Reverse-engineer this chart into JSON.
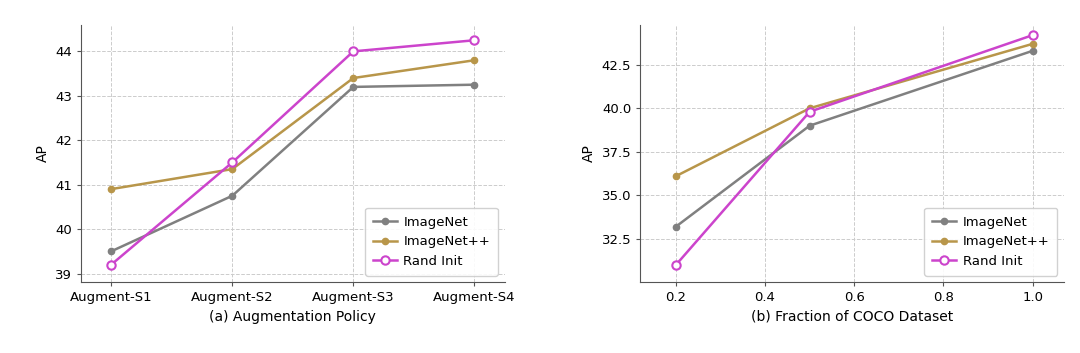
{
  "left": {
    "xlabel": "(a) Augmentation Policy",
    "ylabel": "AP",
    "xtick_labels": [
      "Augment-S1",
      "Augment-S2",
      "Augment-S3",
      "Augment-S4"
    ],
    "ylim": [
      38.8,
      44.6
    ],
    "yticks": [
      39,
      40,
      41,
      42,
      43,
      44
    ],
    "series": {
      "ImageNet": {
        "y": [
          39.5,
          40.75,
          43.2,
          43.25
        ],
        "color": "#808080",
        "marker": "o",
        "marker_size": 4.5,
        "linewidth": 1.8,
        "zorder": 2,
        "open_marker": false
      },
      "ImageNet++": {
        "y": [
          40.9,
          41.35,
          43.4,
          43.8
        ],
        "color": "#b8964a",
        "marker": "o",
        "marker_size": 4.5,
        "linewidth": 1.8,
        "zorder": 2,
        "open_marker": false
      },
      "Rand Init": {
        "y": [
          39.2,
          41.5,
          44.0,
          44.25
        ],
        "color": "#cc44cc",
        "marker": "o",
        "marker_size": 6,
        "linewidth": 1.8,
        "zorder": 3,
        "open_marker": true
      }
    }
  },
  "right": {
    "xlabel": "(b) Fraction of COCO Dataset",
    "ylabel": "AP",
    "x": [
      0.2,
      0.5,
      1.0
    ],
    "xticks": [
      0.2,
      0.4,
      0.6,
      0.8,
      1.0
    ],
    "xlim": [
      0.12,
      1.07
    ],
    "ylim": [
      30.0,
      44.8
    ],
    "yticks": [
      32.5,
      35.0,
      37.5,
      40.0,
      42.5
    ],
    "series": {
      "ImageNet": {
        "y": [
          33.2,
          39.0,
          43.3
        ],
        "color": "#808080",
        "marker": "o",
        "marker_size": 4.5,
        "linewidth": 1.8,
        "zorder": 2,
        "open_marker": false
      },
      "ImageNet++": {
        "y": [
          36.1,
          40.0,
          43.7
        ],
        "color": "#b8964a",
        "marker": "o",
        "marker_size": 4.5,
        "linewidth": 1.8,
        "zorder": 2,
        "open_marker": false
      },
      "Rand Init": {
        "y": [
          31.0,
          39.8,
          44.2
        ],
        "color": "#cc44cc",
        "marker": "o",
        "marker_size": 6,
        "linewidth": 1.8,
        "zorder": 3,
        "open_marker": true
      }
    }
  },
  "background_color": "#ffffff",
  "grid_color": "#cccccc",
  "grid_style": "--",
  "grid_alpha": 1.0,
  "grid_linewidth": 0.7,
  "spine_color": "#555555",
  "tick_fontsize": 9.5,
  "label_fontsize": 10,
  "legend_fontsize": 9.5
}
